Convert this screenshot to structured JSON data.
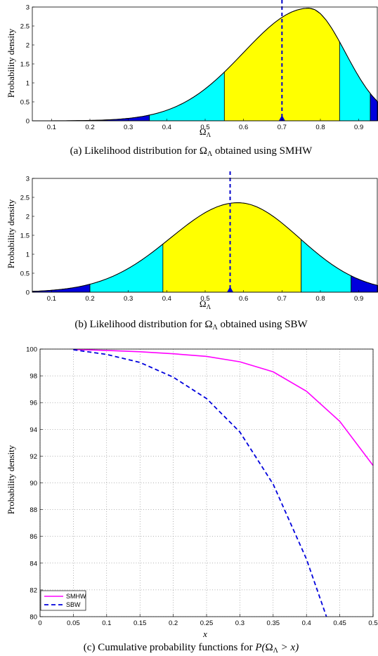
{
  "colors": {
    "fill_outer": "#0000dd",
    "fill_mid": "#00ffff",
    "fill_inner": "#ffff00",
    "curve": "#000000",
    "marker": "#0000cc",
    "smhw": "#ff00ff",
    "sbw": "#0000dd"
  },
  "chart_data": [
    {
      "id": "a",
      "type": "area",
      "ylabel": "Probability density",
      "xlabel_base": "Ω",
      "xlabel_sub": "Λ",
      "caption": {
        "prefix": "(a)  Likelihood distribution for ",
        "sym": "Ω",
        "sub": "Λ",
        "suffix": " obtained using SMHW"
      },
      "xlim": [
        0.05,
        0.95
      ],
      "ylim": [
        0,
        3
      ],
      "xticks": [
        "0.1",
        "0.2",
        "0.3",
        "0.4",
        "0.5",
        "0.6",
        "0.7",
        "0.8",
        "0.9"
      ],
      "yticks": [
        "0",
        "0.5",
        "1",
        "1.5",
        "2",
        "2.5",
        "3"
      ],
      "curve": {
        "kind": "skew",
        "peak_x": 0.77,
        "peak_y": 2.97,
        "left_width": 0.17,
        "right_width": 0.095
      },
      "region_bounds": [
        0.355,
        0.55,
        0.85,
        0.93
      ],
      "marker_x": 0.7
    },
    {
      "id": "b",
      "type": "area",
      "ylabel": "Probability density",
      "xlabel_base": "Ω",
      "xlabel_sub": "Λ",
      "caption": {
        "prefix": "(b)  Likelihood distribution for ",
        "sym": "Ω",
        "sub": "Λ",
        "suffix": " obtained using SBW"
      },
      "xlim": [
        0.05,
        0.95
      ],
      "ylim": [
        0,
        3
      ],
      "xticks": [
        "0.1",
        "0.2",
        "0.3",
        "0.4",
        "0.5",
        "0.6",
        "0.7",
        "0.8",
        "0.9"
      ],
      "yticks": [
        "0",
        "0.5",
        "1",
        "1.5",
        "2",
        "2.5",
        "3"
      ],
      "curve": {
        "kind": "skew",
        "peak_x": 0.585,
        "peak_y": 2.36,
        "left_width": 0.175,
        "right_width": 0.16
      },
      "region_bounds": [
        0.2,
        0.39,
        0.75,
        0.88
      ],
      "marker_x": 0.565
    },
    {
      "id": "c",
      "type": "line",
      "ylabel": "Probability density",
      "xlabel": "x",
      "caption": {
        "prefix": "(c)  Cumulative probability functions for ",
        "p_open": "P(",
        "sym": "Ω",
        "sub": "Λ",
        "suffix": " > x)"
      },
      "xlim": [
        0,
        0.5
      ],
      "ylim": [
        80,
        100
      ],
      "grid": true,
      "legend_position": "bottom-left",
      "xticks": [
        "0",
        "0.05",
        "0.1",
        "0.15",
        "0.2",
        "0.25",
        "0.3",
        "0.35",
        "0.4",
        "0.45",
        "0.5"
      ],
      "yticks": [
        "80",
        "82",
        "84",
        "86",
        "88",
        "90",
        "92",
        "94",
        "96",
        "98",
        "100"
      ],
      "series": [
        {
          "name": "SMHW",
          "x": [
            0.05,
            0.1,
            0.15,
            0.2,
            0.25,
            0.3,
            0.35,
            0.4,
            0.45,
            0.5
          ],
          "y": [
            99.97,
            99.9,
            99.8,
            99.65,
            99.45,
            99.05,
            98.3,
            96.85,
            94.6,
            91.3
          ]
        },
        {
          "name": "SBW",
          "x": [
            0.05,
            0.1,
            0.15,
            0.2,
            0.25,
            0.3,
            0.35,
            0.4,
            0.43
          ],
          "y": [
            99.95,
            99.6,
            99.0,
            97.9,
            96.3,
            93.8,
            89.9,
            84.3,
            80.0
          ]
        }
      ]
    }
  ]
}
